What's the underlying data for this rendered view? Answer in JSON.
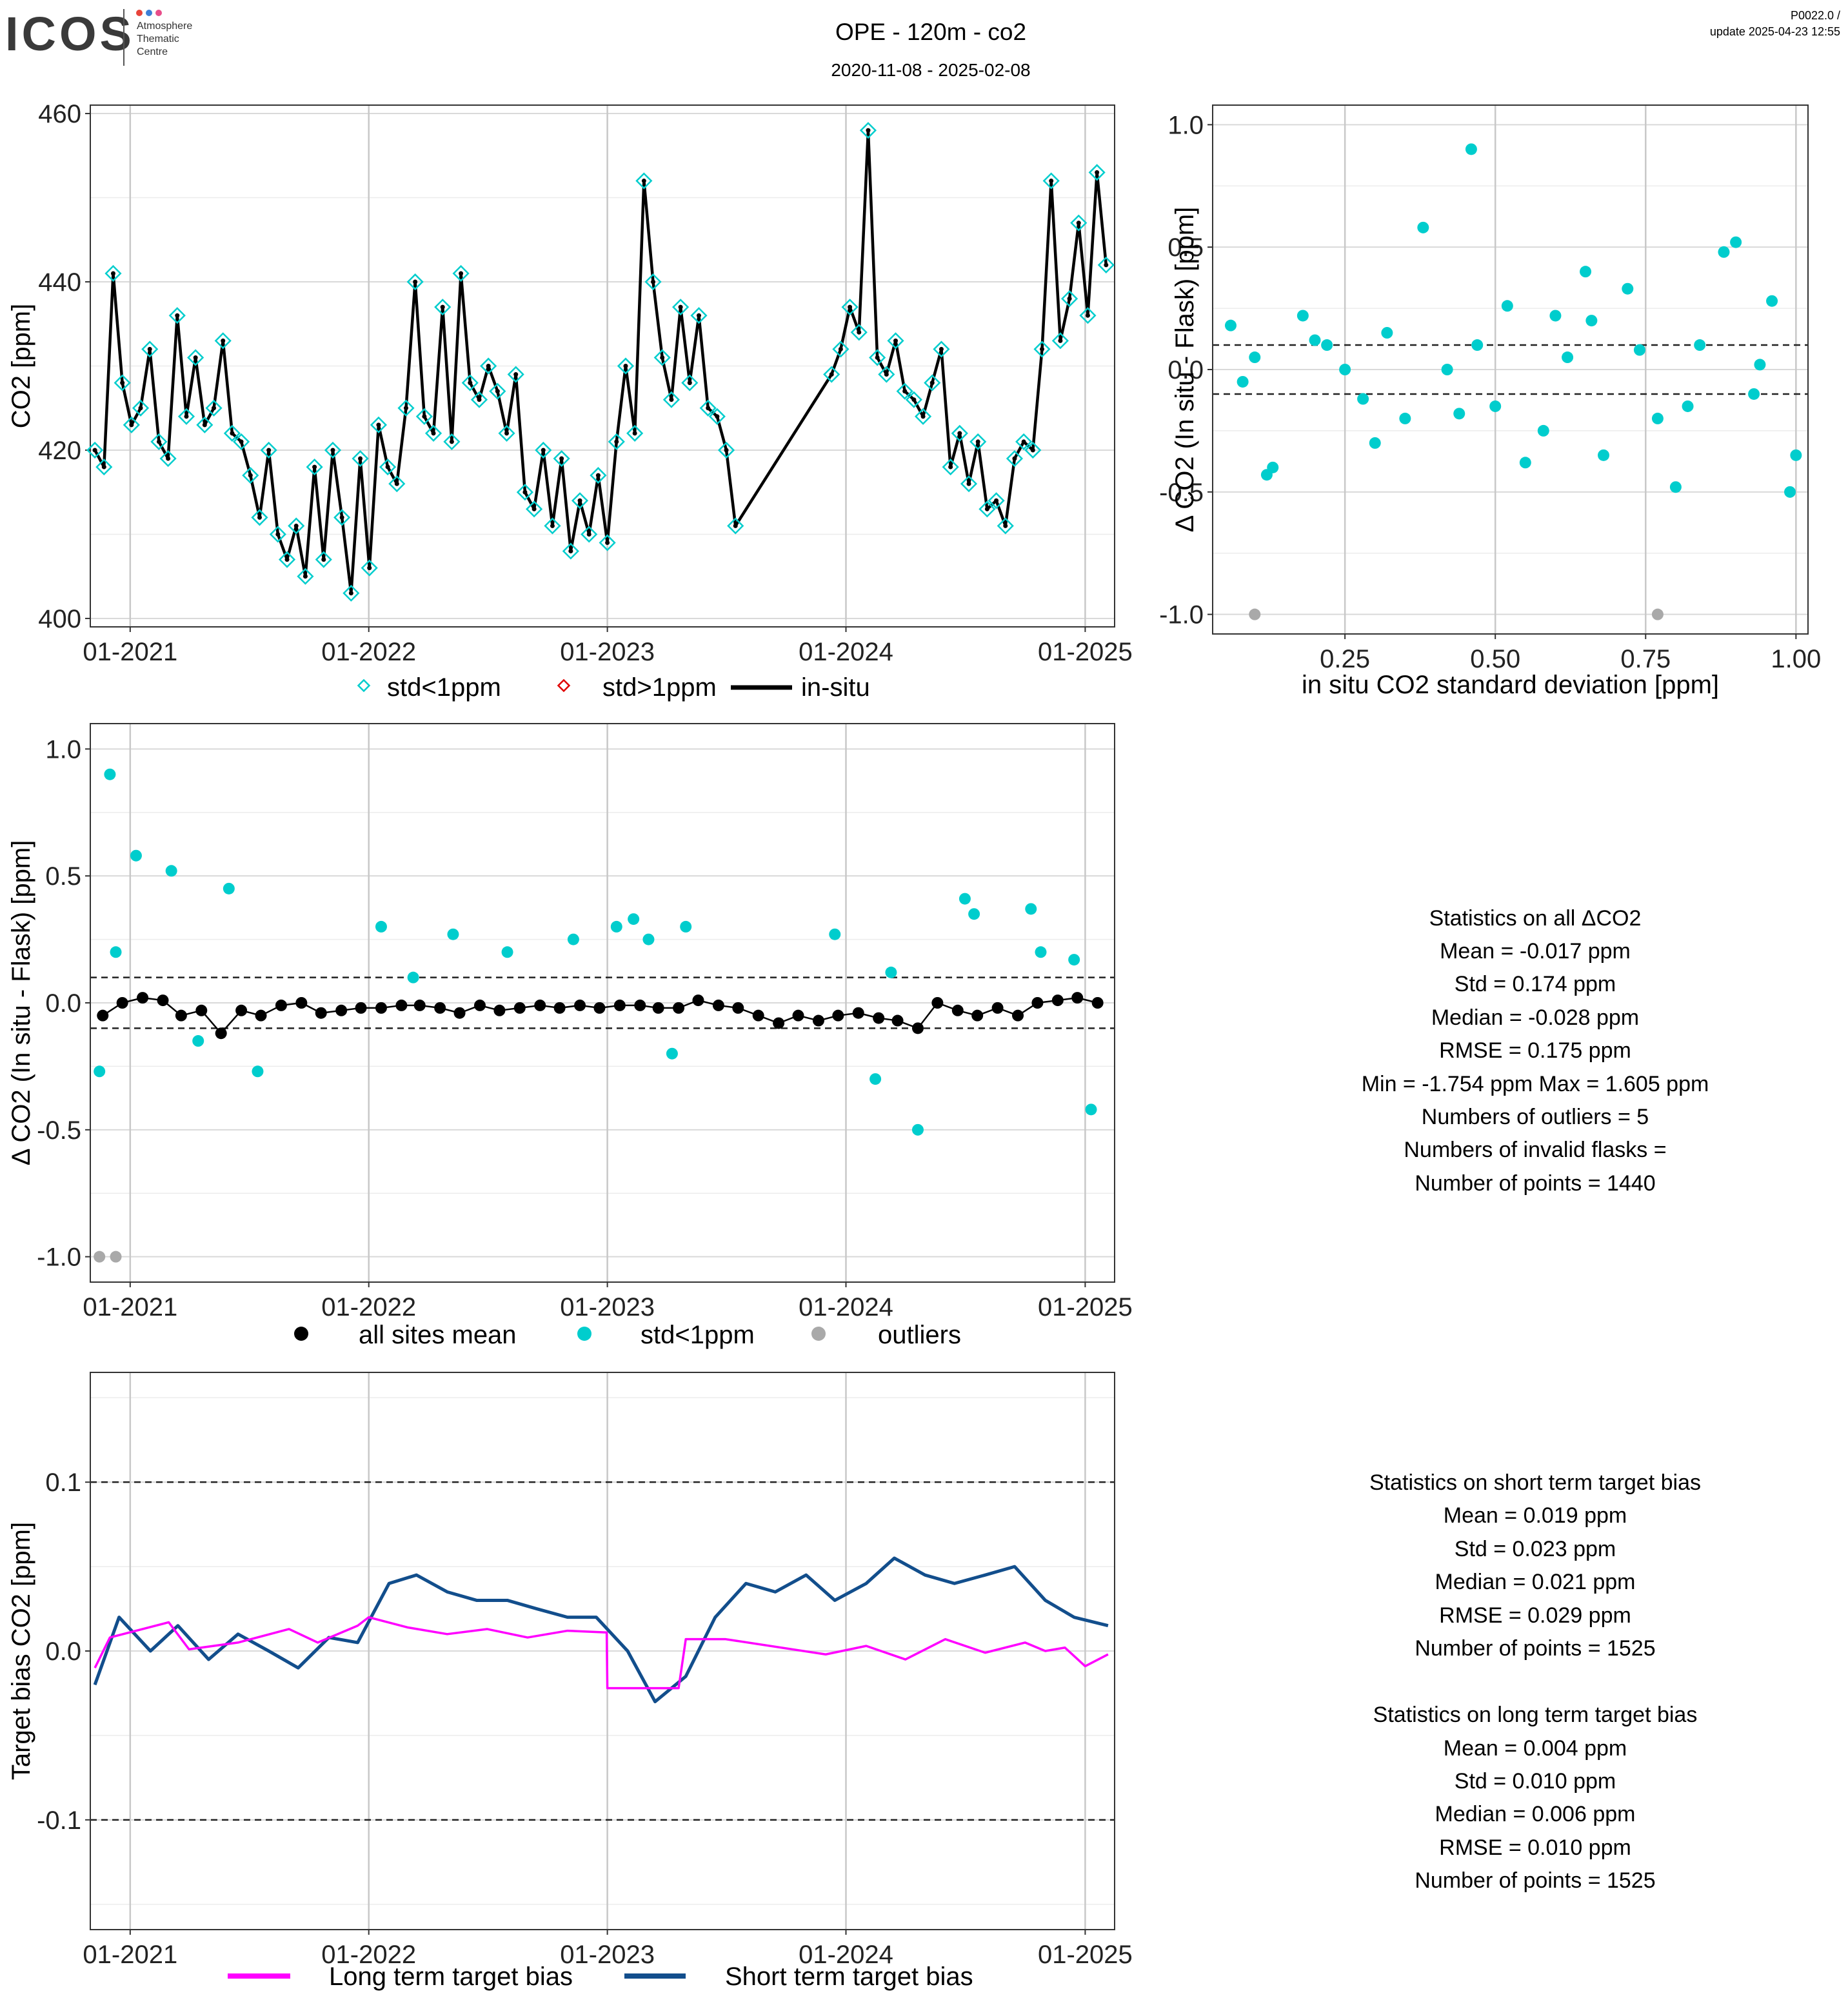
{
  "header": {
    "logo_text": "ICOS",
    "logo_subtitle": [
      "Atmosphere",
      "Thematic",
      "Centre"
    ],
    "logo_dot_colors": [
      "#e8443a",
      "#3d7fd6",
      "#e84d8a"
    ],
    "title": "OPE - 120m - co2",
    "date_range": "2020-11-08 - 2025-02-08",
    "version": "P0022.0 /",
    "update": "update  2025-04-23 12:55"
  },
  "stats_delta": {
    "lines": [
      "Statistics on all ΔCO2",
      "Mean =  -0.017 ppm",
      "Std =  0.174 ppm",
      "Median =  -0.028 ppm",
      "RMSE =  0.175 ppm",
      "Min =  -1.754 ppm Max =  1.605 ppm",
      "Numbers of outliers =  5",
      "Numbers of invalid flasks = ",
      "Number of points =  1440"
    ]
  },
  "stats_bias": {
    "lines": [
      "Statistics on short term target bias",
      "Mean =  0.019 ppm",
      "Std =  0.023 ppm",
      "Median =  0.021 ppm",
      "RMSE =  0.029 ppm",
      "Number of points =  1525",
      "",
      "Statistics on long term target bias",
      "Mean =  0.004 ppm",
      "Std =  0.010 ppm",
      "Median =  0.006 ppm",
      "RMSE =  0.010 ppm",
      "Number of points =  1525"
    ]
  },
  "colors": {
    "cyan": "#00cdcd",
    "black": "#000000",
    "red": "#e00000",
    "grey": "#a9a9a9",
    "magenta": "#ff00ff",
    "navy": "#124e8c"
  },
  "chart_data": [
    {
      "id": "co2_timeseries",
      "type": "line",
      "xlabel": "",
      "ylabel": "CO2 [ppm]",
      "ylim": [
        399,
        461
      ],
      "yticks": [
        400,
        420,
        440,
        460
      ],
      "x_type": "date",
      "xlim": [
        "2020-11-01",
        "2025-02-15"
      ],
      "xticks": [
        {
          "x": "2021-01-01",
          "label": "01-2021"
        },
        {
          "x": "2022-01-01",
          "label": "01-2022"
        },
        {
          "x": "2023-01-01",
          "label": "01-2023"
        },
        {
          "x": "2024-01-01",
          "label": "01-2024"
        },
        {
          "x": "2025-01-01",
          "label": "01-2025"
        }
      ],
      "grid": true,
      "legend": {
        "position": "bottom",
        "entries": [
          "std<1ppm",
          "std>1ppm",
          "in-situ"
        ]
      },
      "series": [
        {
          "name": "in-situ",
          "x": [
            "2020-11-08",
            "2020-11-22",
            "2020-12-06",
            "2020-12-20",
            "2021-01-03",
            "2021-01-17",
            "2021-01-31",
            "2021-02-14",
            "2021-02-28",
            "2021-03-14",
            "2021-03-28",
            "2021-04-11",
            "2021-04-25",
            "2021-05-09",
            "2021-05-23",
            "2021-06-06",
            "2021-06-20",
            "2021-07-04",
            "2021-07-18",
            "2021-08-01",
            "2021-08-15",
            "2021-08-29",
            "2021-09-12",
            "2021-09-26",
            "2021-10-10",
            "2021-10-24",
            "2021-11-07",
            "2021-11-21",
            "2021-12-05",
            "2021-12-19",
            "2022-01-02",
            "2022-01-16",
            "2022-01-30",
            "2022-02-13",
            "2022-02-27",
            "2022-03-13",
            "2022-03-27",
            "2022-04-10",
            "2022-04-24",
            "2022-05-08",
            "2022-05-22",
            "2022-06-05",
            "2022-06-19",
            "2022-07-03",
            "2022-07-17",
            "2022-07-31",
            "2022-08-14",
            "2022-08-28",
            "2022-09-11",
            "2022-09-25",
            "2022-10-09",
            "2022-10-23",
            "2022-11-06",
            "2022-11-20",
            "2022-12-04",
            "2022-12-18",
            "2023-01-01",
            "2023-01-15",
            "2023-01-29",
            "2023-02-12",
            "2023-02-26",
            "2023-03-12",
            "2023-03-26",
            "2023-04-09",
            "2023-04-23",
            "2023-05-07",
            "2023-05-21",
            "2023-06-04",
            "2023-06-18",
            "2023-07-02",
            "2023-07-16",
            "2023-12-10",
            "2023-12-24",
            "2024-01-07",
            "2024-01-21",
            "2024-02-04",
            "2024-02-18",
            "2024-03-03",
            "2024-03-17",
            "2024-03-31",
            "2024-04-14",
            "2024-04-28",
            "2024-05-12",
            "2024-05-26",
            "2024-06-09",
            "2024-06-23",
            "2024-07-07",
            "2024-07-21",
            "2024-08-04",
            "2024-08-18",
            "2024-09-01",
            "2024-09-15",
            "2024-09-29",
            "2024-10-13",
            "2024-10-27",
            "2024-11-10",
            "2024-11-24",
            "2024-12-08",
            "2024-12-22",
            "2025-01-05",
            "2025-01-19",
            "2025-02-02"
          ],
          "values": [
            420,
            418,
            441,
            428,
            423,
            425,
            432,
            421,
            419,
            436,
            424,
            431,
            423,
            425,
            433,
            422,
            421,
            417,
            412,
            420,
            410,
            407,
            411,
            405,
            418,
            407,
            420,
            412,
            403,
            419,
            406,
            423,
            418,
            416,
            425,
            440,
            424,
            422,
            437,
            421,
            441,
            428,
            426,
            430,
            427,
            422,
            429,
            415,
            413,
            420,
            411,
            419,
            408,
            414,
            410,
            417,
            409,
            421,
            430,
            422,
            452,
            440,
            431,
            426,
            437,
            428,
            436,
            425,
            424,
            420,
            411,
            429,
            432,
            437,
            434,
            458,
            431,
            429,
            433,
            427,
            426,
            424,
            428,
            432,
            418,
            422,
            416,
            421,
            413,
            414,
            411,
            419,
            421,
            420,
            432,
            452,
            433,
            438,
            447,
            436,
            453,
            442
          ]
        },
        {
          "name": "std<1ppm",
          "x": "same as in-situ",
          "values": "same as in-situ"
        },
        {
          "name": "std>1ppm",
          "values": []
        }
      ]
    },
    {
      "id": "delta_vs_std",
      "type": "scatter",
      "xlabel": "in situ CO2 standard deviation [ppm]",
      "ylabel": "Δ CO2 (In situ - Flask) [ppm]",
      "xlim": [
        0.03,
        1.02
      ],
      "ylim": [
        -1.08,
        1.08
      ],
      "xticks": [
        0.25,
        0.5,
        0.75,
        1.0
      ],
      "xtick_labels": [
        "0.25",
        "0.50",
        "0.75",
        "1.00"
      ],
      "yticks": [
        -1.0,
        -0.5,
        0.0,
        0.5,
        1.0
      ],
      "ytick_labels": [
        "-1.0",
        "-0.5",
        "0.0",
        "0.5",
        "1.0"
      ],
      "hlines": [
        0.1,
        -0.1
      ],
      "grid": true,
      "series": [
        {
          "name": "std<1ppm",
          "x": [
            0.06,
            0.1,
            0.13,
            0.18,
            0.22,
            0.28,
            0.3,
            0.32,
            0.38,
            0.42,
            0.46,
            0.5,
            0.55,
            0.6,
            0.62,
            0.65,
            0.68,
            0.72,
            0.77,
            0.8,
            0.84,
            0.9,
            0.93,
            0.96,
            0.99,
            0.12,
            0.25,
            0.35,
            0.47,
            0.52,
            0.58,
            0.66,
            0.74,
            0.82,
            0.88,
            0.94,
            1.0,
            0.08,
            0.2,
            0.44
          ],
          "values": [
            0.18,
            0.05,
            -0.4,
            0.22,
            0.1,
            -0.12,
            -0.3,
            0.15,
            0.58,
            0.0,
            0.9,
            -0.15,
            -0.38,
            0.22,
            0.05,
            0.4,
            -0.35,
            0.33,
            -0.2,
            -0.48,
            0.1,
            0.52,
            -0.1,
            0.28,
            -0.5,
            -0.43,
            0.0,
            -0.2,
            0.1,
            0.26,
            -0.25,
            0.2,
            0.08,
            -0.15,
            0.48,
            0.02,
            -0.35,
            -0.05,
            0.12,
            -0.18
          ]
        },
        {
          "name": "outliers",
          "x": [
            0.1,
            0.77
          ],
          "values": [
            -1.0,
            -1.0
          ]
        }
      ]
    },
    {
      "id": "delta_timeseries",
      "type": "scatter",
      "xlabel": "",
      "ylabel": "Δ CO2 (In situ - Flask) [ppm]",
      "ylim": [
        -1.1,
        1.1
      ],
      "yticks": [
        -1.0,
        -0.5,
        0.0,
        0.5,
        1.0
      ],
      "ytick_labels": [
        "-1.0",
        "-0.5",
        "0.0",
        "0.5",
        "1.0"
      ],
      "x_type": "date",
      "xlim": [
        "2020-11-01",
        "2025-02-15"
      ],
      "xticks": [
        {
          "x": "2021-01-01",
          "label": "01-2021"
        },
        {
          "x": "2022-01-01",
          "label": "01-2022"
        },
        {
          "x": "2023-01-01",
          "label": "01-2023"
        },
        {
          "x": "2024-01-01",
          "label": "01-2024"
        },
        {
          "x": "2025-01-01",
          "label": "01-2025"
        }
      ],
      "hlines": [
        0.1,
        -0.1
      ],
      "grid": true,
      "legend": {
        "position": "bottom",
        "entries": [
          "all sites mean",
          "std<1ppm",
          "outliers"
        ]
      },
      "series": [
        {
          "name": "all sites mean",
          "x": [
            "2020-11-20",
            "2020-12-20",
            "2021-01-20",
            "2021-02-20",
            "2021-03-20",
            "2021-04-20",
            "2021-05-20",
            "2021-06-20",
            "2021-07-20",
            "2021-08-20",
            "2021-09-20",
            "2021-10-20",
            "2021-11-20",
            "2021-12-20",
            "2022-01-20",
            "2022-02-20",
            "2022-03-20",
            "2022-04-20",
            "2022-05-20",
            "2022-06-20",
            "2022-07-20",
            "2022-08-20",
            "2022-09-20",
            "2022-10-20",
            "2022-11-20",
            "2022-12-20",
            "2023-01-20",
            "2023-02-20",
            "2023-03-20",
            "2023-04-20",
            "2023-05-20",
            "2023-06-20",
            "2023-07-20",
            "2023-08-20",
            "2023-09-20",
            "2023-10-20",
            "2023-11-20",
            "2023-12-20",
            "2024-01-20",
            "2024-02-20",
            "2024-03-20",
            "2024-04-20",
            "2024-05-20",
            "2024-06-20",
            "2024-07-20",
            "2024-08-20",
            "2024-09-20",
            "2024-10-20",
            "2024-11-20",
            "2024-12-20",
            "2025-01-20"
          ],
          "values": [
            -0.05,
            0.0,
            0.02,
            0.01,
            -0.05,
            -0.03,
            -0.12,
            -0.03,
            -0.05,
            -0.01,
            0.0,
            -0.04,
            -0.03,
            -0.02,
            -0.02,
            -0.01,
            -0.01,
            -0.02,
            -0.04,
            -0.01,
            -0.03,
            -0.02,
            -0.01,
            -0.02,
            -0.01,
            -0.02,
            -0.01,
            -0.01,
            -0.02,
            -0.02,
            0.01,
            -0.01,
            -0.02,
            -0.05,
            -0.08,
            -0.05,
            -0.07,
            -0.05,
            -0.04,
            -0.06,
            -0.07,
            -0.1,
            0.0,
            -0.03,
            -0.05,
            -0.02,
            -0.05,
            0.0,
            0.01,
            0.02,
            0.0
          ]
        },
        {
          "name": "std<1ppm",
          "x": [
            "2020-11-15",
            "2020-12-01",
            "2021-01-10",
            "2021-03-05",
            "2021-06-01",
            "2021-07-15",
            "2022-01-20",
            "2022-05-10",
            "2022-08-01",
            "2022-11-10",
            "2023-01-15",
            "2023-02-10",
            "2023-03-05",
            "2023-05-01",
            "2023-12-15",
            "2024-03-10",
            "2024-04-20",
            "2024-07-01",
            "2024-07-15",
            "2024-10-10",
            "2024-10-25",
            "2025-01-10",
            "2020-12-10",
            "2021-04-15",
            "2022-03-10",
            "2023-04-10",
            "2024-02-15",
            "2024-12-15"
          ],
          "values": [
            -0.27,
            0.9,
            0.58,
            0.52,
            0.45,
            -0.27,
            0.3,
            0.27,
            0.2,
            0.25,
            0.3,
            0.33,
            0.25,
            0.3,
            0.27,
            0.12,
            -0.5,
            0.41,
            0.35,
            0.37,
            0.2,
            -0.42,
            0.2,
            -0.15,
            0.1,
            -0.2,
            -0.3,
            0.17
          ]
        },
        {
          "name": "outliers",
          "x": [
            "2020-11-15",
            "2020-12-10"
          ],
          "values": [
            -1.0,
            -1.0
          ]
        }
      ]
    },
    {
      "id": "target_bias",
      "type": "line",
      "xlabel": "",
      "ylabel": "Target bias CO2 [ppm]",
      "ylim": [
        -0.165,
        0.165
      ],
      "yticks": [
        -0.1,
        0.0,
        0.1
      ],
      "ytick_labels": [
        "-0.1",
        "0.0",
        "0.1"
      ],
      "x_type": "date",
      "xlim": [
        "2020-11-01",
        "2025-02-15"
      ],
      "xticks": [
        {
          "x": "2021-01-01",
          "label": "01-2021"
        },
        {
          "x": "2022-01-01",
          "label": "01-2022"
        },
        {
          "x": "2023-01-01",
          "label": "01-2023"
        },
        {
          "x": "2024-01-01",
          "label": "01-2024"
        },
        {
          "x": "2025-01-01",
          "label": "01-2025"
        }
      ],
      "hlines": [
        0.1,
        -0.1
      ],
      "grid": true,
      "legend": {
        "position": "bottom",
        "entries": [
          "Long term target bias",
          "Short term target bias"
        ]
      },
      "series": [
        {
          "name": "Long term target bias",
          "x": [
            "2020-11-08",
            "2020-12-01",
            "2021-03-01",
            "2021-04-01",
            "2021-06-15",
            "2021-09-01",
            "2021-10-15",
            "2021-12-15",
            "2022-01-01",
            "2022-03-01",
            "2022-05-01",
            "2022-07-01",
            "2022-09-01",
            "2022-11-01",
            "2022-12-31",
            "2023-01-01",
            "2023-04-20",
            "2023-05-01",
            "2023-07-01",
            "2023-12-01",
            "2024-02-01",
            "2024-04-01",
            "2024-06-01",
            "2024-08-01",
            "2024-10-01",
            "2024-11-01",
            "2024-12-01",
            "2025-01-01",
            "2025-02-05"
          ],
          "values": [
            -0.01,
            0.008,
            0.017,
            0.001,
            0.005,
            0.013,
            0.005,
            0.015,
            0.02,
            0.014,
            0.01,
            0.013,
            0.008,
            0.012,
            0.011,
            -0.022,
            -0.022,
            0.007,
            0.007,
            -0.002,
            0.003,
            -0.005,
            0.007,
            -0.001,
            0.005,
            0.0,
            0.002,
            -0.009,
            -0.002
          ]
        },
        {
          "name": "Short term target bias",
          "x": [
            "2020-11-08",
            "2020-12-15",
            "2021-02-01",
            "2021-03-15",
            "2021-05-01",
            "2021-06-15",
            "2021-08-01",
            "2021-09-15",
            "2021-11-01",
            "2021-12-15",
            "2022-02-01",
            "2022-03-15",
            "2022-05-01",
            "2022-06-15",
            "2022-08-01",
            "2022-09-15",
            "2022-11-01",
            "2022-12-15",
            "2023-02-01",
            "2023-03-15",
            "2023-05-01",
            "2023-06-15",
            "2023-08-01",
            "2023-09-15",
            "2023-11-01",
            "2023-12-15",
            "2024-02-01",
            "2024-03-15",
            "2024-05-01",
            "2024-06-15",
            "2024-08-01",
            "2024-09-15",
            "2024-11-01",
            "2024-12-15",
            "2025-02-05"
          ],
          "values": [
            -0.02,
            0.02,
            0.0,
            0.015,
            -0.005,
            0.01,
            0.0,
            -0.01,
            0.008,
            0.005,
            0.04,
            0.045,
            0.035,
            0.03,
            0.03,
            0.025,
            0.02,
            0.02,
            0.0,
            -0.03,
            -0.015,
            0.02,
            0.04,
            0.035,
            0.045,
            0.03,
            0.04,
            0.055,
            0.045,
            0.04,
            0.045,
            0.05,
            0.03,
            0.02,
            0.015
          ]
        }
      ]
    }
  ]
}
